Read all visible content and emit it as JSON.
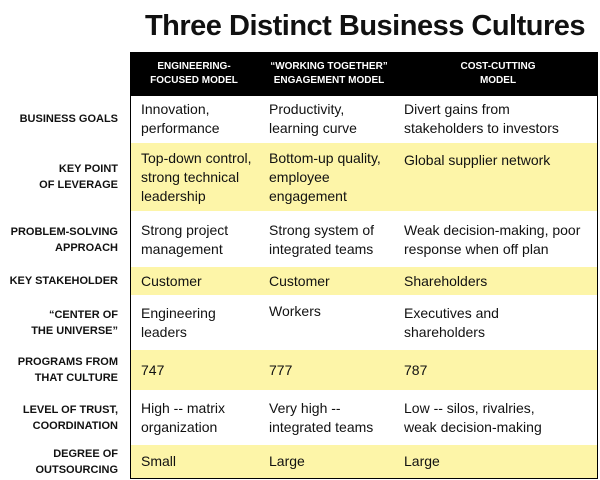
{
  "title": "Three Distinct Business Cultures",
  "columns": [
    "ENGINEERING-\nFOCUSED MODEL",
    "“WORKING TOGETHER”\nENGAGEMENT MODEL",
    "COST-CUTTING\nMODEL"
  ],
  "rows": [
    {
      "label": "BUSINESS GOALS",
      "cells": [
        "Innovation,\nperformance",
        "Productivity,\nlearning curve",
        "Divert gains from\nstakeholders to investors"
      ]
    },
    {
      "label": "KEY POINT\nOF LEVERAGE",
      "cells": [
        "Top-down control,\nstrong technical\nleadership",
        "Bottom-up quality,\nemployee\nengagement",
        "Global supplier network"
      ]
    },
    {
      "label": "PROBLEM-SOLVING\nAPPROACH",
      "cells": [
        "Strong project\nmanagement",
        "Strong system of\nintegrated teams",
        "Weak decision-making, poor\nresponse when off plan"
      ]
    },
    {
      "label": "KEY STAKEHOLDER",
      "cells": [
        "Customer",
        "Customer",
        "Shareholders"
      ]
    },
    {
      "label": "“CENTER OF\nTHE UNIVERSE”",
      "cells": [
        "Engineering\nleaders",
        "Workers",
        "Executives and\nshareholders"
      ]
    },
    {
      "label": "PROGRAMS FROM\nTHAT CULTURE",
      "cells": [
        "747",
        "777",
        "787"
      ]
    },
    {
      "label": "LEVEL OF TRUST,\nCOORDINATION",
      "cells": [
        "High -- matrix\norganization",
        "Very high --\nintegrated teams",
        "Low -- silos, rivalries,\nweak decision-making"
      ]
    },
    {
      "label": "DEGREE OF\nOUTSOURCING",
      "cells": [
        "Small",
        "Large",
        "Large"
      ]
    }
  ],
  "colors": {
    "header_bg": "#000000",
    "highlight_bg": "#fdf5a8"
  }
}
